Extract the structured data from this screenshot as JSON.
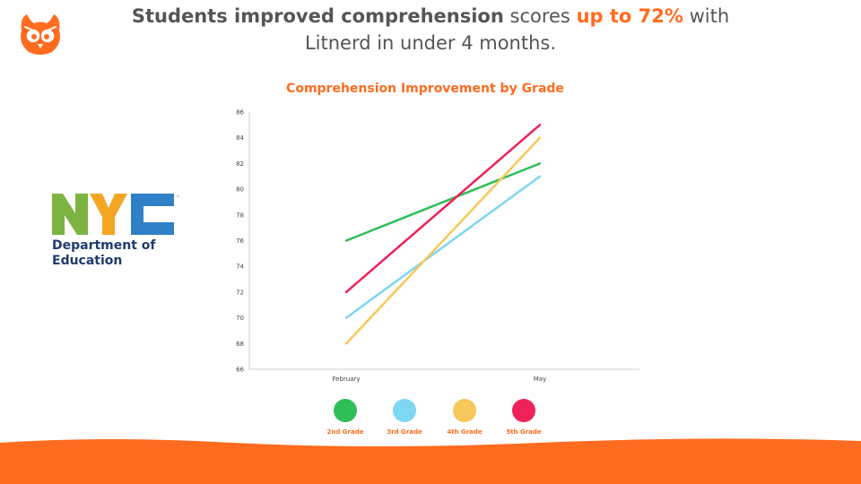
{
  "header": {
    "headline_bold": "Students improved comprehension",
    "headline_mid": "scores",
    "headline_accent": "up to 72%",
    "headline_end": "with",
    "headline_line2": "Litnerd in under 4 months."
  },
  "partner": {
    "logo_text": "NYC",
    "dept_line1": "Department of",
    "dept_line2": "Education"
  },
  "colors": {
    "accent": "#ff6c1f",
    "second_grade": "#2fbe57",
    "third_grade": "#7dd6f2",
    "fourth_grade": "#f7c75b",
    "fifth_grade": "#ee2158",
    "nyc_green": "#7cb342",
    "nyc_blue_light": "#2f80c6",
    "nyc_navy": "#1f3b6f"
  },
  "chart_data": {
    "type": "line",
    "title": "Comprehension Improvement by Grade",
    "xlabel": "",
    "ylabel": "",
    "x": [
      "February",
      "May"
    ],
    "ylim": [
      66,
      86
    ],
    "yticks": [
      66,
      68,
      70,
      72,
      74,
      76,
      78,
      80,
      82,
      84,
      86
    ],
    "grid": false,
    "legend_position": "bottom",
    "series": [
      {
        "name": "2nd Grade",
        "values": [
          76,
          82
        ],
        "color": "#2fbe57"
      },
      {
        "name": "3rd Grade",
        "values": [
          70,
          81
        ],
        "color": "#7dd6f2"
      },
      {
        "name": "4th Grade",
        "values": [
          68,
          84
        ],
        "color": "#f7c75b"
      },
      {
        "name": "5th Grade",
        "values": [
          72,
          85
        ],
        "color": "#ee2158"
      }
    ]
  }
}
